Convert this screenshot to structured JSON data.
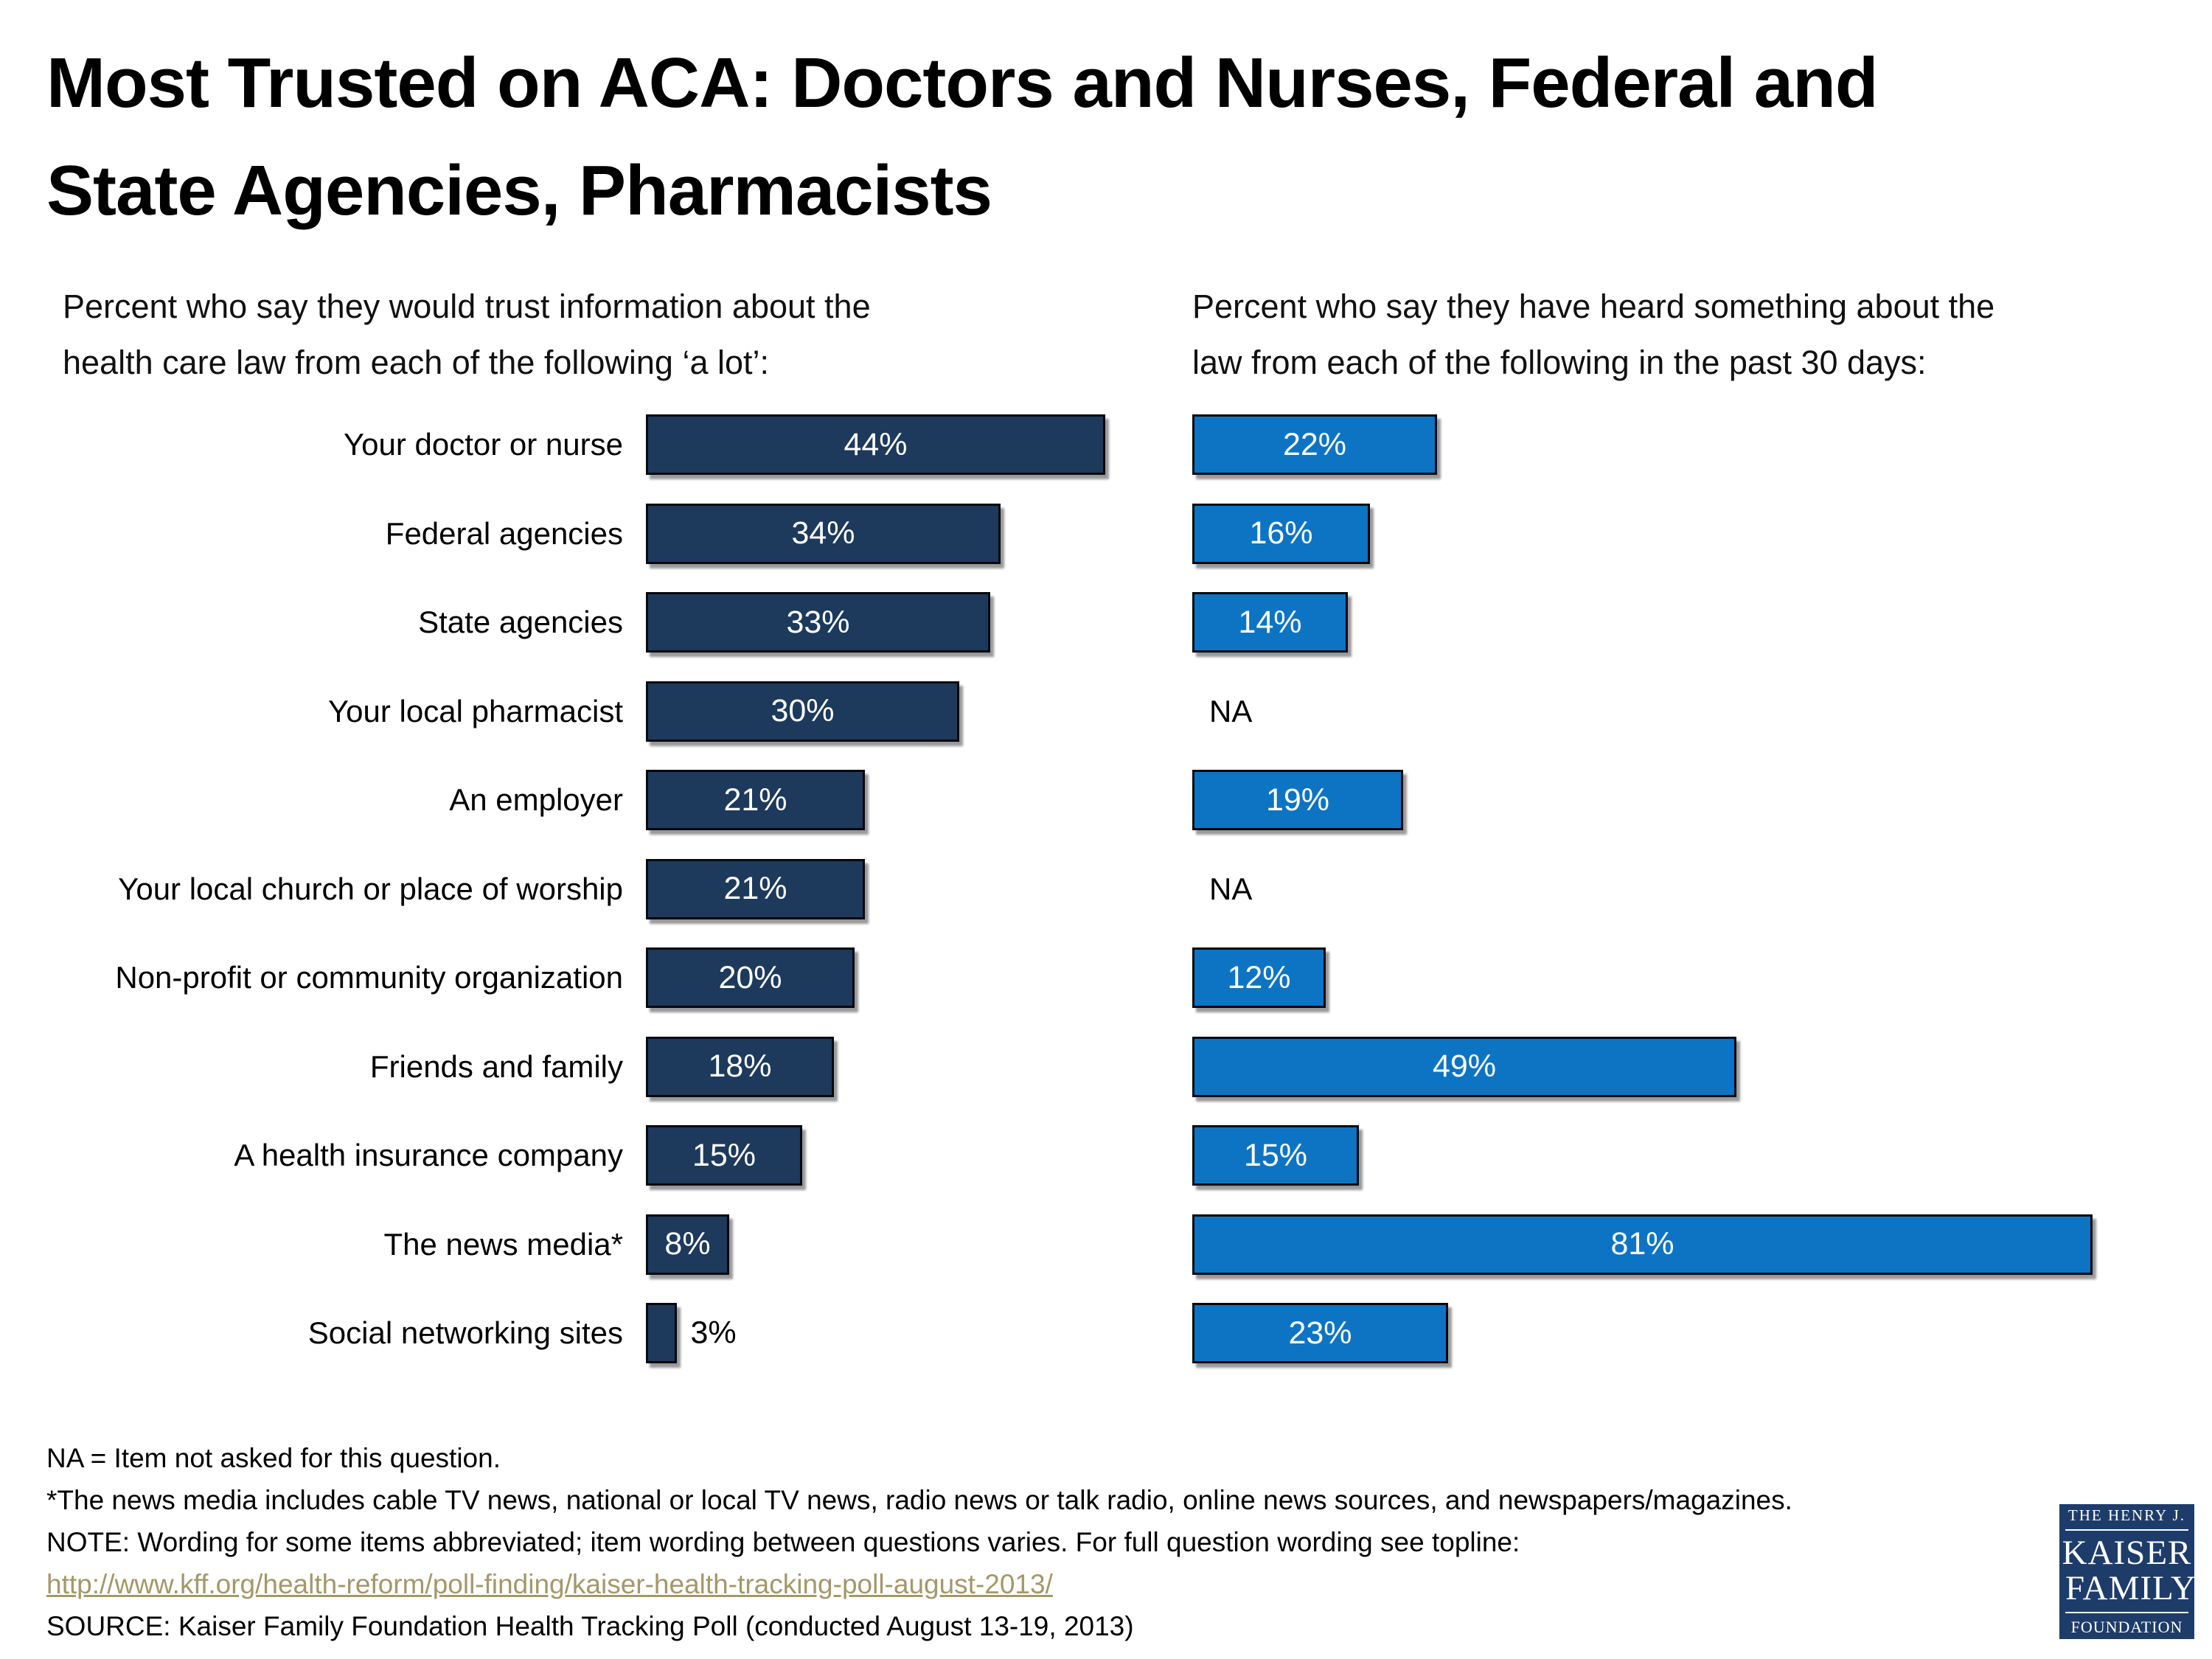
{
  "title": {
    "line1": "Most Trusted on ACA: Doctors and Nurses, Federal and",
    "line2": "State Agencies, Pharmacists"
  },
  "subtitles": {
    "left_line1": "Percent who say they would trust information about the",
    "left_line2": "health care law from each of the following  ‘a lot’:",
    "right_line1": "Percent who say they have heard something about the",
    "right_line2": "law from each of the following in the past 30 days:"
  },
  "chart_data": {
    "type": "bar",
    "orientation": "horizontal",
    "grid": false,
    "axes_shown": false,
    "xlim": [
      0,
      100
    ],
    "value_suffix": "%",
    "na_label": "NA",
    "categories": [
      "Your doctor or nurse",
      "Federal agencies",
      "State agencies",
      "Your local pharmacist",
      "An employer",
      "Your local church or place of worship",
      "Non-profit or community organization",
      "Friends and family",
      "A health insurance company",
      "The news media*",
      "Social networking sites"
    ],
    "series": [
      {
        "name": "Percent who say they would trust information about the health care law from each of the following ‘a lot’",
        "color": "#1d3a5c",
        "values": [
          44,
          34,
          33,
          30,
          21,
          21,
          20,
          18,
          15,
          8,
          3
        ]
      },
      {
        "name": "Percent who say they have heard something about the law from each of the following in the past 30 days",
        "color": "#0d74c4",
        "values": [
          22,
          16,
          14,
          null,
          19,
          null,
          12,
          49,
          15,
          81,
          23
        ]
      }
    ]
  },
  "footnotes": {
    "line1": "NA = Item not asked for this question.",
    "line2": "*The news media includes cable TV news, national or local TV news, radio news or talk radio, online news sources, and newspapers/magazines.",
    "line3": "NOTE: Wording for some items abbreviated; item wording between questions varies. For full question wording see topline:",
    "link": "http://www.kff.org/health-reform/poll-finding/kaiser-health-tracking-poll-august-2013/",
    "source": "SOURCE: Kaiser Family Foundation Health Tracking Poll (conducted August 13-19, 2013)"
  },
  "logo": {
    "line1": "THE HENRY J.",
    "line2": "KAISER",
    "line3": "FAMILY",
    "line4": "FOUNDATION",
    "background": "#1e3c6a"
  },
  "colors": {
    "trust_bar": "#1d3a5c",
    "heard_bar": "#0d74c4",
    "bar_border": "#04080f",
    "link": "#a3986a",
    "text": "#000000",
    "background": "#ffffff"
  }
}
